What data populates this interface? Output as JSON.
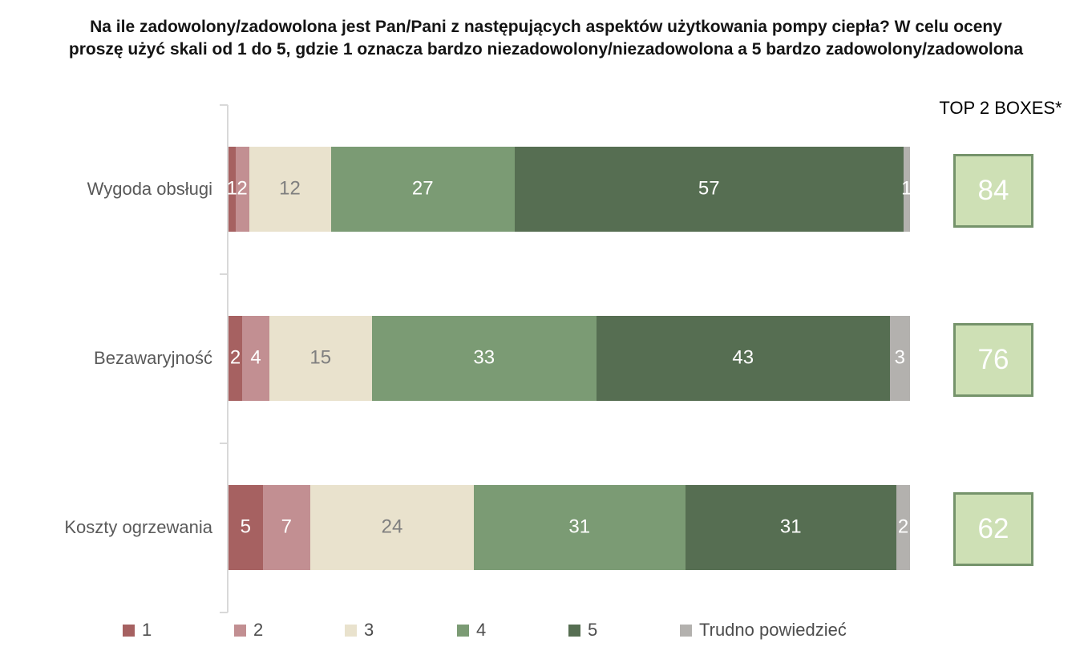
{
  "title": {
    "lines": [
      "Na ile zadowolony/zadowolona jest Pan/Pani z następujących aspektów użytkowania pompy ciepła? W celu oceny",
      "proszę użyć skali od 1 do 5, gdzie 1 oznacza bardzo niezadowolony/niezadowolona a 5 bardzo zadowolony/zadowolona"
    ]
  },
  "top2_header": "TOP 2 BOXES*",
  "colors": {
    "score1": "#a66161",
    "score2": "#c28f92",
    "score3": "#e9e2cd",
    "score4": "#7b9b74",
    "score5": "#566e52",
    "dont_know": "#b3b1ae",
    "top2_fill": "#cee0b5",
    "top2_border": "#75936b",
    "axis": "#d9d9d9",
    "label_on_light": "#7f7f7f",
    "label_on_dark": "#ffffff"
  },
  "chart_data": {
    "type": "bar",
    "orientation": "horizontal",
    "stacked": true,
    "unit": "percent",
    "xlim": [
      0,
      100
    ],
    "grid": false,
    "legend_position": "bottom",
    "categories": [
      "Wygoda obsługi",
      "Bezawaryjność",
      "Koszty ogrzewania"
    ],
    "series": [
      {
        "name": "1",
        "color": "#a66161",
        "light_label": false,
        "values": [
          1,
          2,
          5
        ]
      },
      {
        "name": "2",
        "color": "#c28f92",
        "light_label": false,
        "values": [
          2,
          4,
          7
        ]
      },
      {
        "name": "3",
        "color": "#e9e2cd",
        "light_label": true,
        "values": [
          12,
          15,
          24
        ]
      },
      {
        "name": "4",
        "color": "#7b9b74",
        "light_label": false,
        "values": [
          27,
          33,
          31
        ]
      },
      {
        "name": "5",
        "color": "#566e52",
        "light_label": false,
        "values": [
          57,
          43,
          31
        ]
      },
      {
        "name": "Trudno powiedzieć",
        "color": "#b3b1ae",
        "light_label": false,
        "values": [
          1,
          3,
          2
        ]
      }
    ],
    "top2_boxes": [
      84,
      76,
      62
    ]
  }
}
